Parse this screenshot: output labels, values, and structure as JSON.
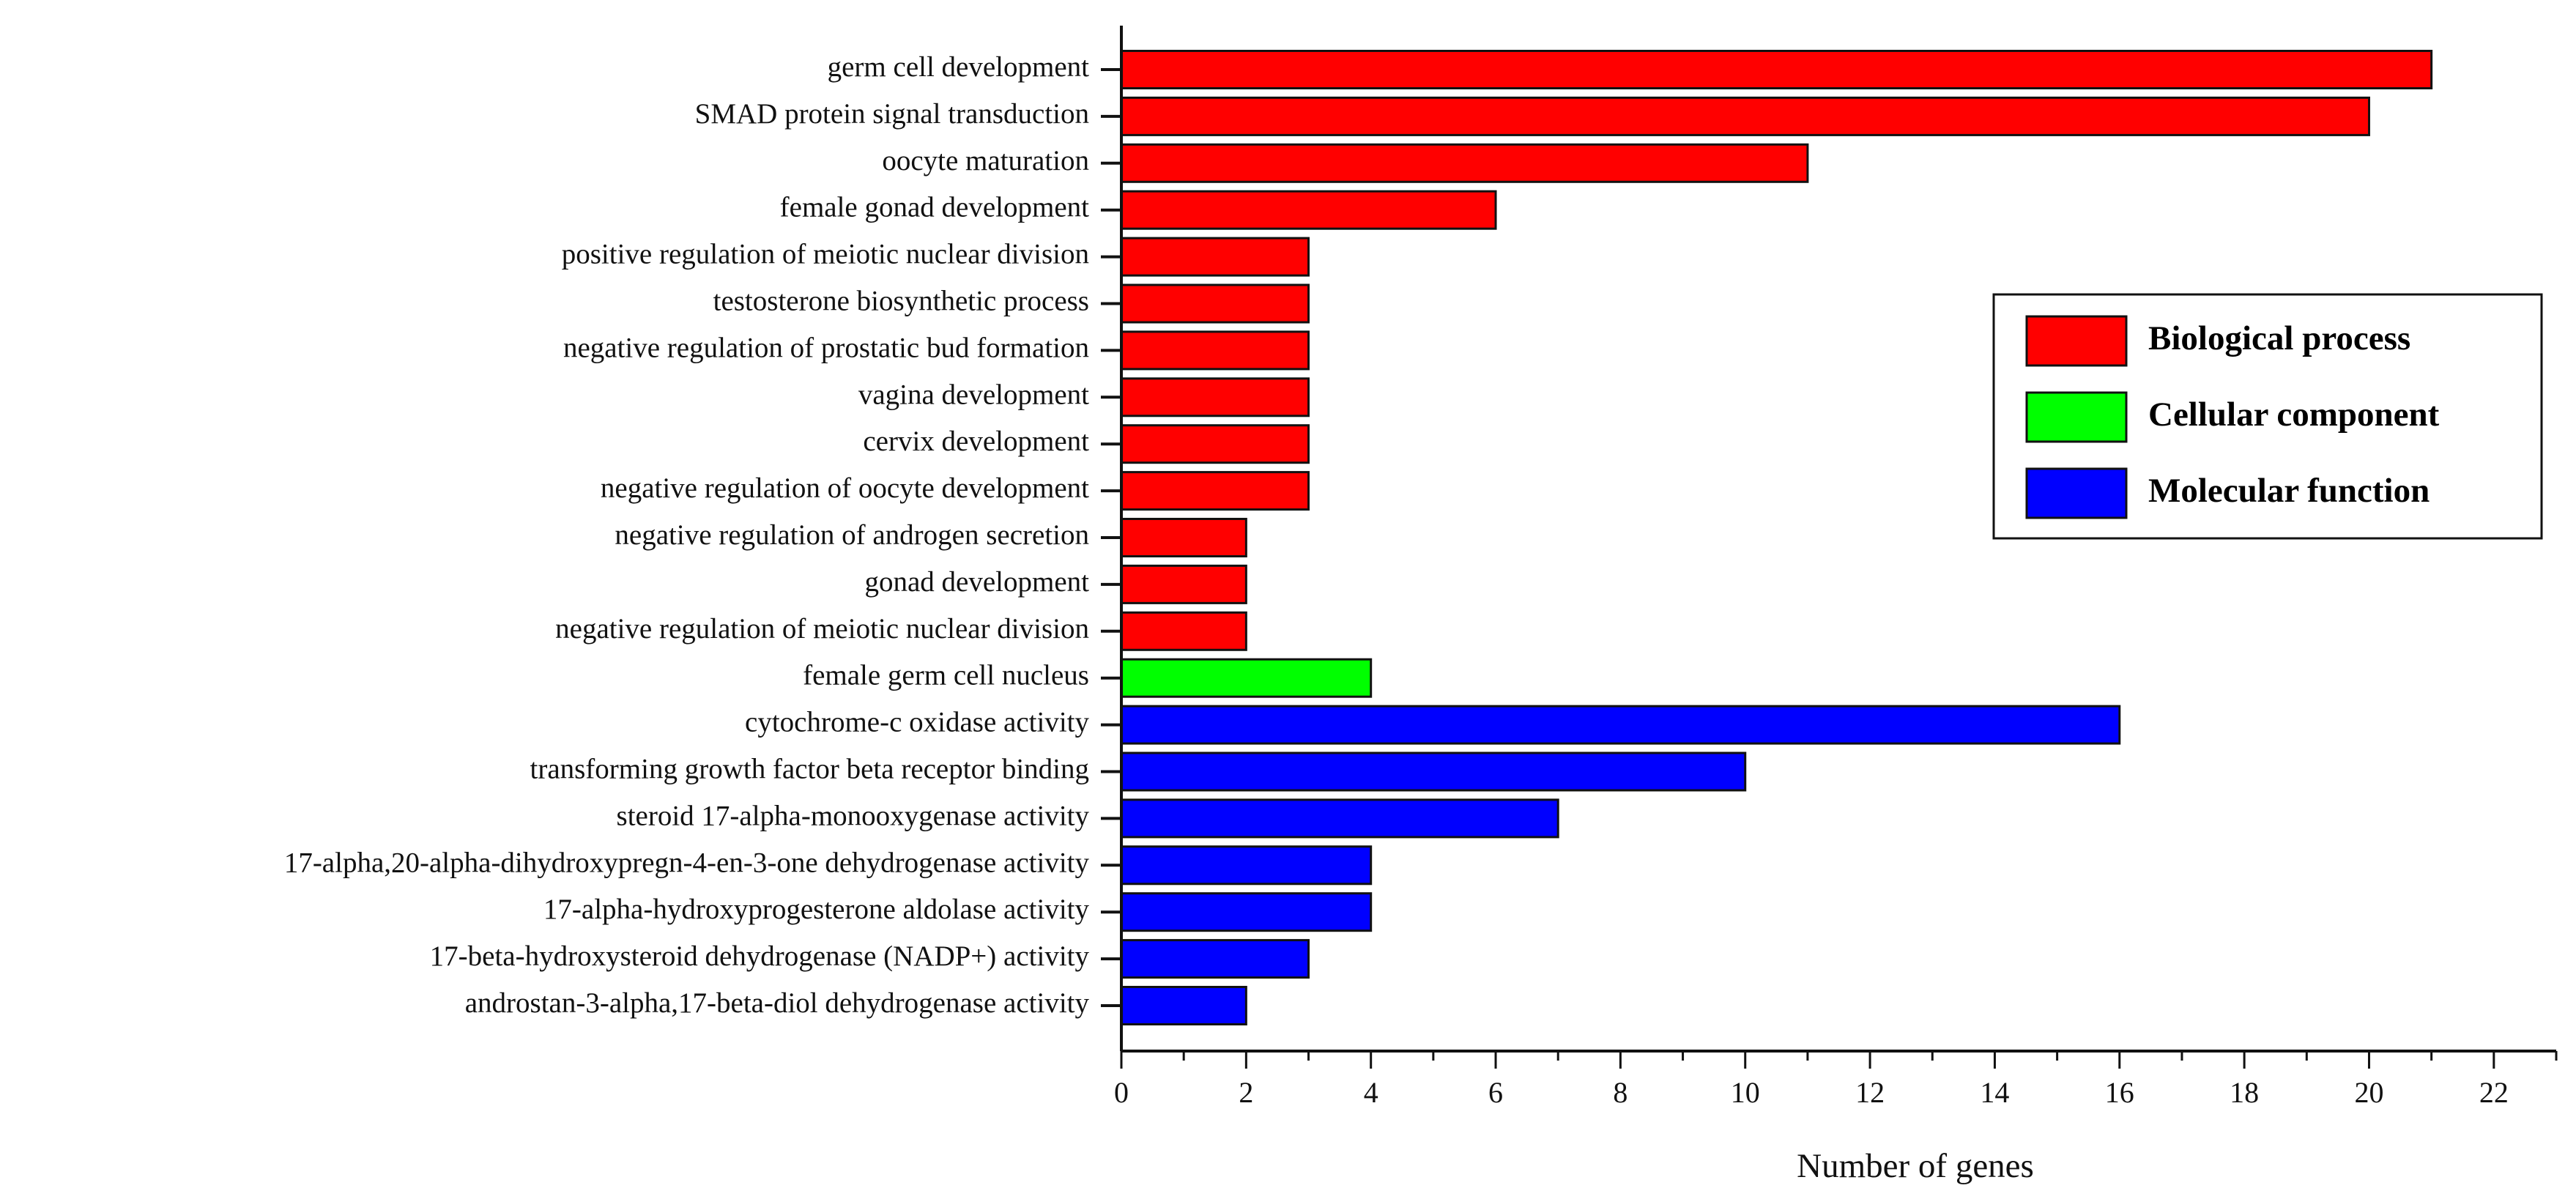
{
  "chart_data": {
    "type": "bar",
    "orientation": "horizontal",
    "xlabel": "Number of genes",
    "ylabel": "",
    "xlim": [
      0,
      23
    ],
    "xticks": [
      "0",
      "2",
      "4",
      "6",
      "8",
      "10",
      "12",
      "14",
      "16",
      "18",
      "20",
      "22"
    ],
    "grid": false,
    "legend_position": "right",
    "categories": [
      "germ cell development",
      "SMAD protein signal transduction",
      "oocyte maturation",
      "female gonad development",
      "positive regulation of meiotic nuclear division",
      "testosterone biosynthetic process",
      "negative regulation of prostatic bud formation",
      "vagina development",
      "cervix development",
      "negative regulation of oocyte development",
      "negative regulation of androgen secretion",
      "gonad development",
      "negative regulation of meiotic nuclear division",
      "female germ cell nucleus",
      "cytochrome-c oxidase activity",
      "transforming growth factor beta receptor binding",
      "steroid 17-alpha-monooxygenase activity",
      "17-alpha,20-alpha-dihydroxypregn-4-en-3-one dehydrogenase activity",
      "17-alpha-hydroxyprogesterone aldolase activity",
      "17-beta-hydroxysteroid dehydrogenase (NADP+) activity",
      "androstan-3-alpha,17-beta-diol dehydrogenase activity"
    ],
    "values": [
      21,
      20,
      11,
      6,
      3,
      3,
      3,
      3,
      3,
      3,
      2,
      2,
      2,
      4,
      16,
      10,
      7,
      4,
      4,
      3,
      2
    ],
    "groups": [
      "Biological process",
      "Biological process",
      "Biological process",
      "Biological process",
      "Biological process",
      "Biological process",
      "Biological process",
      "Biological process",
      "Biological process",
      "Biological process",
      "Biological process",
      "Biological process",
      "Biological process",
      "Cellular component",
      "Molecular function",
      "Molecular function",
      "Molecular function",
      "Molecular function",
      "Molecular function",
      "Molecular function",
      "Molecular function"
    ],
    "legend": [
      {
        "name": "Biological process",
        "color": "#ff0000"
      },
      {
        "name": "Cellular component",
        "color": "#00ff00"
      },
      {
        "name": "Molecular function",
        "color": "#0000ff"
      }
    ]
  }
}
